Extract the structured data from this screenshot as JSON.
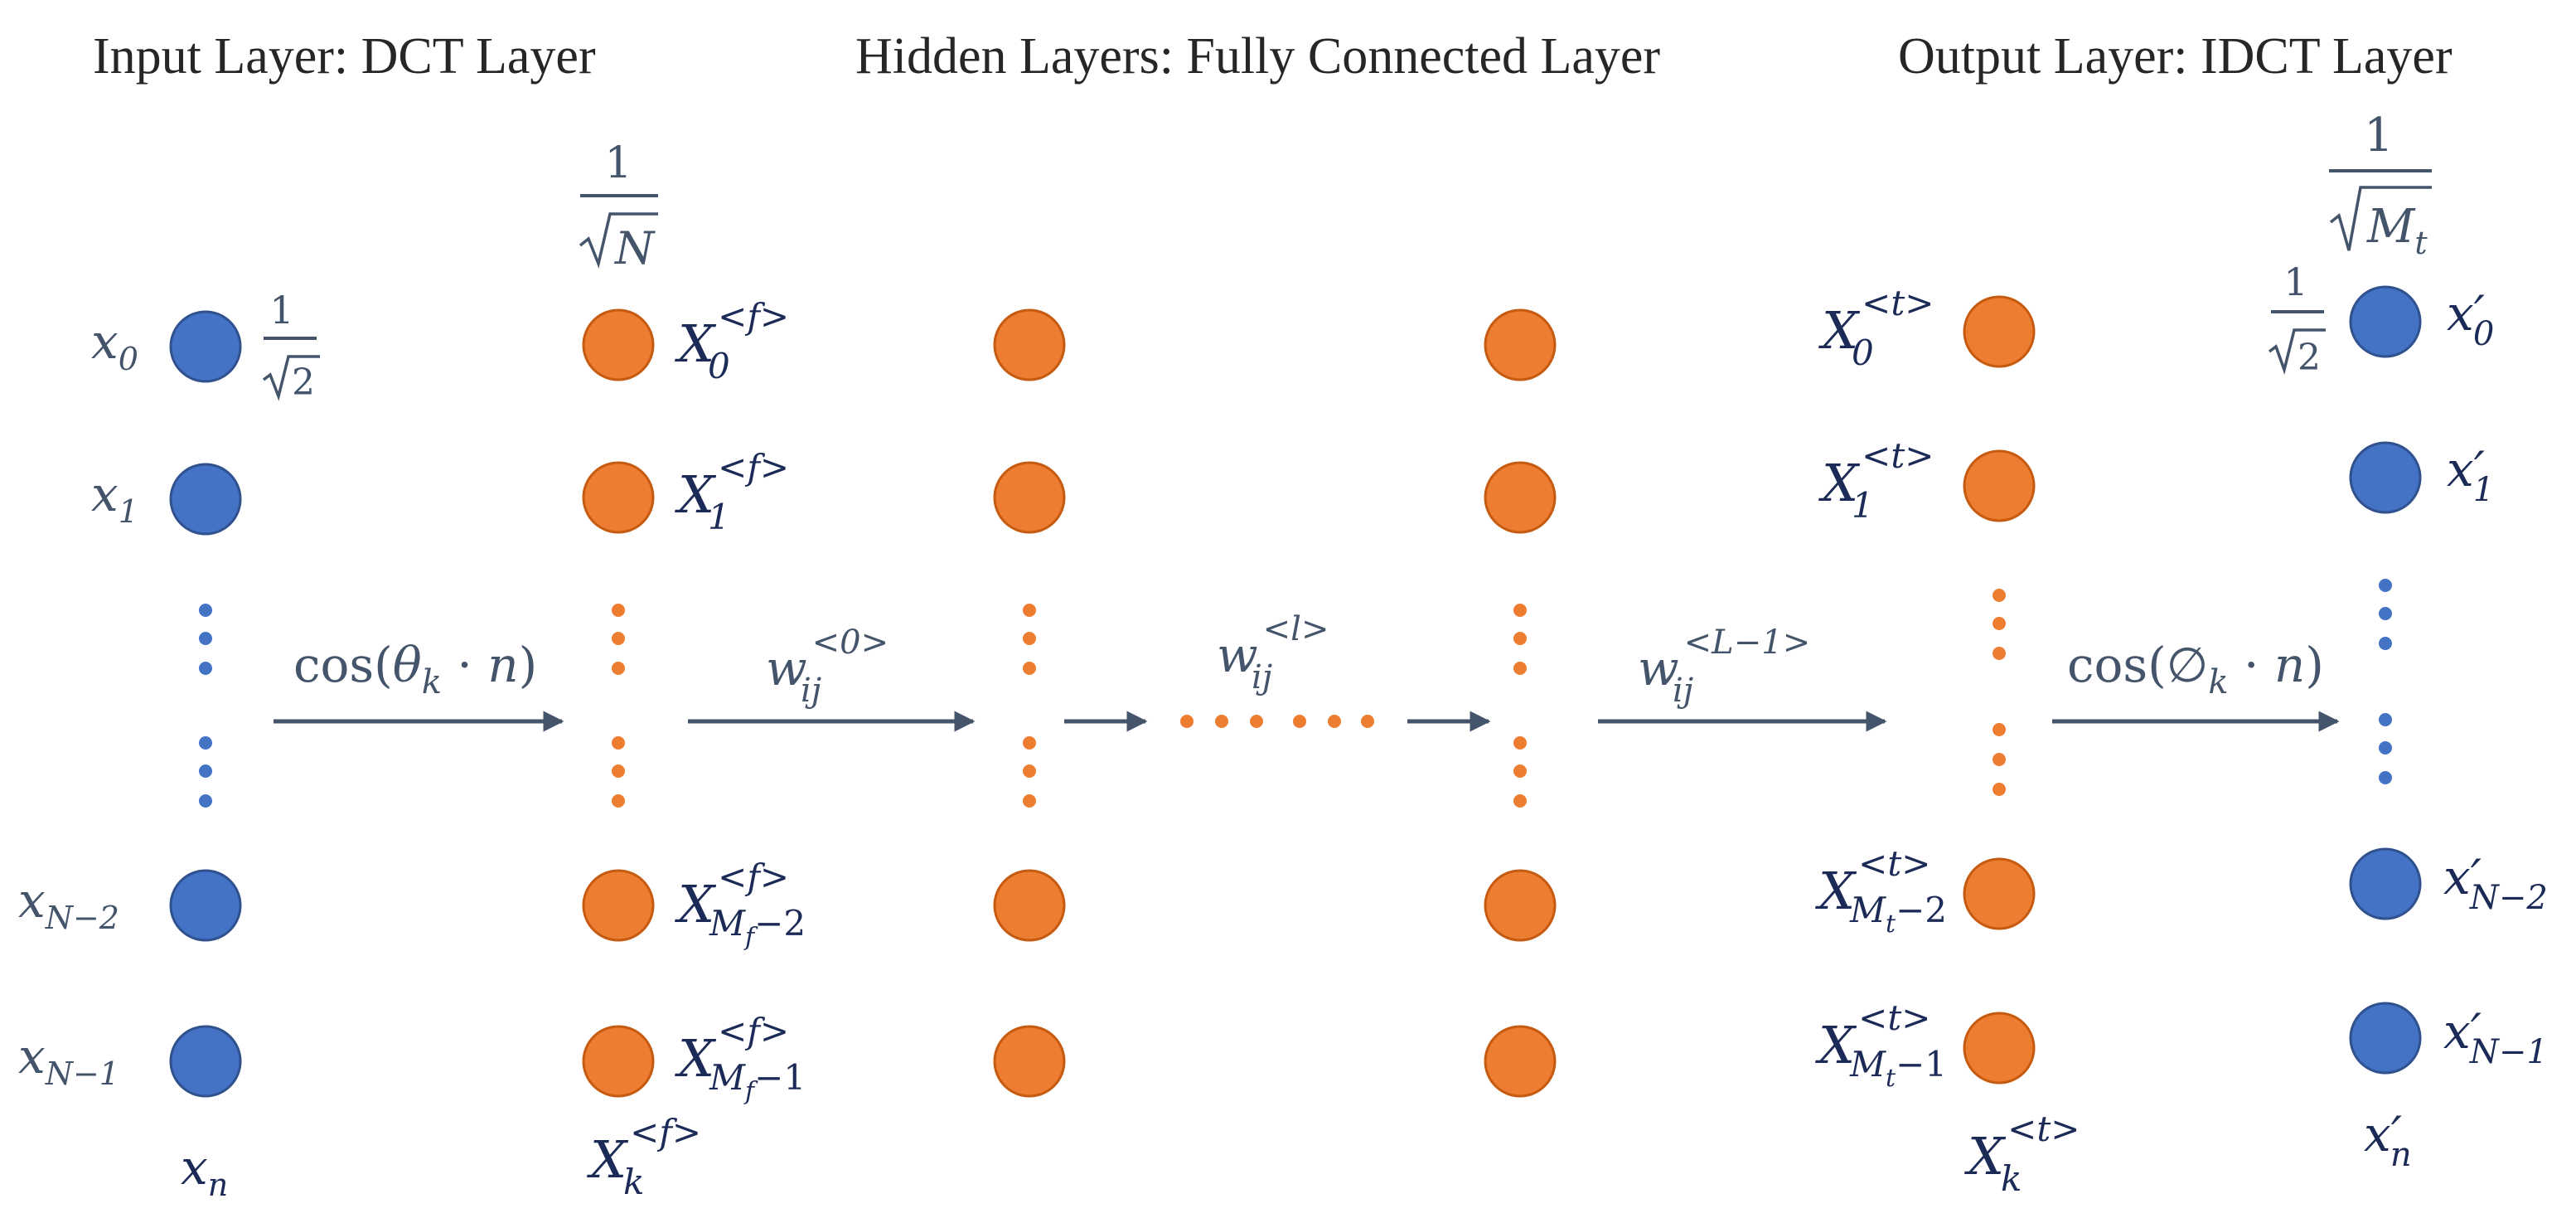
{
  "headers": {
    "input": "Input Layer: DCT Layer",
    "hidden": "Hidden Layers: Fully Connected  Layer",
    "output": "Output Layer: IDCT Layer"
  },
  "colors": {
    "input_node": "#4472c4",
    "hidden_node": "#ed7d31",
    "output_node": "#4472c4",
    "arrow": "#44546a",
    "label_dark": "#1b2a56",
    "label_gray": "#44546a"
  },
  "input_labels": {
    "x0": {
      "base": "x",
      "sub": "0"
    },
    "x1": {
      "base": "x",
      "sub": "1"
    },
    "xN2": {
      "base": "x",
      "sub": "N−2"
    },
    "xN1": {
      "base": "x",
      "sub": "N−1"
    },
    "xn": {
      "base": "x",
      "sub": "n"
    },
    "scale_num": "1",
    "scale_den": "2"
  },
  "dct_labels": {
    "X0": {
      "base": "X",
      "sup": "<f>",
      "sub": "0"
    },
    "X1": {
      "base": "X",
      "sup": "<f>",
      "sub": "1"
    },
    "XM2": {
      "base": "X",
      "sup": "<f>",
      "sub": "M",
      "subsub": "f",
      "subtail": "−2"
    },
    "XM1": {
      "base": "X",
      "sup": "<f>",
      "sub": "M",
      "subsub": "f",
      "subtail": "−1"
    },
    "Xk": {
      "base": "X",
      "sup": "<f>",
      "sub": "k"
    },
    "scale_num": "1",
    "scale_den": "N"
  },
  "idct_in_labels": {
    "X0": {
      "base": "X",
      "sup": "<t>",
      "sub": "0"
    },
    "X1": {
      "base": "X",
      "sup": "<t>",
      "sub": "1"
    },
    "XM2": {
      "base": "X",
      "sup": "<t>",
      "sub": "M",
      "subsub": "t",
      "subtail": "−2"
    },
    "XM1": {
      "base": "X",
      "sup": "<t>",
      "sub": "M",
      "subsub": "t",
      "subtail": "−1"
    },
    "Xk": {
      "base": "X",
      "sup": "<t>",
      "sub": "k"
    }
  },
  "output_labels": {
    "x0": {
      "base": "x′",
      "sub": "0"
    },
    "x1": {
      "base": "x′",
      "sub": "1"
    },
    "xN2": {
      "base": "x′",
      "sub": "N−2"
    },
    "xN1": {
      "base": "x′",
      "sub": "N−1"
    },
    "xn": {
      "base": "x′",
      "sub": "n"
    },
    "scale_num": "1",
    "scale_den": "2",
    "scale2_num": "1",
    "scale2_den": "M",
    "scale2_den_sub": "t"
  },
  "arrows": {
    "dct": {
      "func": "cos(",
      "var": "θ",
      "sub": "k",
      "mid": " · ",
      "n": "n",
      "close": ")"
    },
    "w0": {
      "base": "w",
      "sup": "<0>",
      "sub": "ij"
    },
    "wl": {
      "base": "w",
      "sup": "<l>",
      "sub": "ij"
    },
    "wL": {
      "base": "w",
      "sup": "<L−1>",
      "sub": "ij"
    },
    "idct": {
      "func": "cos(",
      "var": "∅",
      "sub": "k",
      "mid": " · ",
      "n": "n",
      "close": ")"
    }
  }
}
